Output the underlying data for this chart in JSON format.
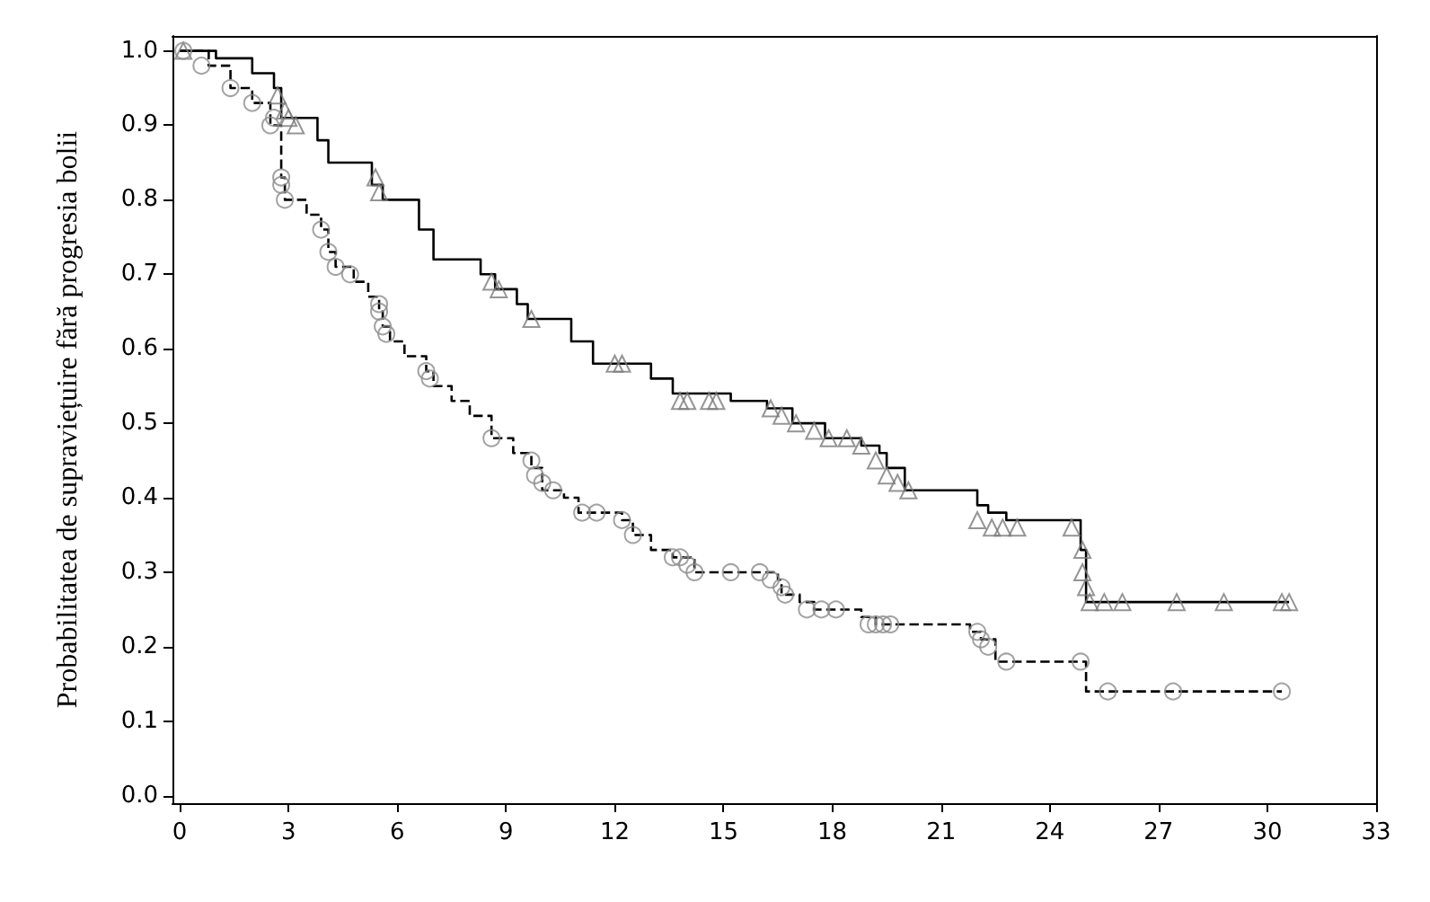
{
  "chart_data": {
    "type": "step",
    "ylabel": "Probabilitatea de supraviețuire fără progresia bolii",
    "xlim": [
      -0.2,
      33
    ],
    "ylim": [
      -0.01,
      1.02
    ],
    "xticks": [
      0,
      3,
      6,
      9,
      12,
      15,
      18,
      21,
      24,
      27,
      30,
      33
    ],
    "yticks": [
      {
        "value": 0,
        "label": "0.0"
      },
      0.1,
      0.2,
      0.3,
      0.4,
      0.5,
      0.6,
      0.7,
      0.8,
      0.9,
      {
        "value": 1,
        "label": "1.0"
      }
    ],
    "grid": false,
    "series": [
      {
        "color": "#000000",
        "line_style": "solid",
        "marker": "none",
        "x": [
          0,
          1.0,
          2.0,
          2.6,
          2.8,
          3.8,
          4.1,
          5.3,
          5.6,
          6.6,
          7.0,
          8.3,
          8.7,
          9.3,
          9.6,
          10.8,
          11.4,
          13.0,
          13.6,
          15.2,
          16.2,
          16.9,
          17.8,
          18.8,
          19.3,
          19.5,
          20.0,
          22.0,
          22.3,
          22.8,
          24.85,
          25.0,
          30.6
        ],
        "values": [
          1.0,
          0.99,
          0.97,
          0.95,
          0.91,
          0.88,
          0.85,
          0.82,
          0.8,
          0.76,
          0.72,
          0.7,
          0.68,
          0.66,
          0.64,
          0.61,
          0.58,
          0.56,
          0.54,
          0.53,
          0.52,
          0.5,
          0.48,
          0.47,
          0.46,
          0.44,
          0.41,
          0.39,
          0.38,
          0.37,
          0.33,
          0.26,
          0.26
        ]
      },
      {
        "color": "#000000",
        "line_style": "dashed",
        "marker": "none",
        "x": [
          0,
          0.8,
          1.4,
          2.0,
          2.5,
          2.8,
          2.9,
          3.5,
          3.9,
          4.1,
          4.3,
          4.8,
          5.2,
          5.5,
          5.6,
          5.8,
          6.2,
          6.8,
          7.0,
          7.5,
          8.0,
          8.6,
          9.2,
          9.7,
          10.0,
          10.6,
          11.0,
          12.2,
          12.5,
          13.0,
          13.6,
          14.2,
          16.5,
          16.6,
          17.1,
          17.5,
          18.8,
          19.2,
          21.8,
          22.1,
          22.5,
          25.0,
          30.4
        ],
        "values": [
          1.0,
          0.98,
          0.95,
          0.93,
          0.9,
          0.83,
          0.8,
          0.78,
          0.76,
          0.73,
          0.71,
          0.69,
          0.67,
          0.65,
          0.63,
          0.61,
          0.59,
          0.57,
          0.55,
          0.53,
          0.51,
          0.48,
          0.46,
          0.44,
          0.41,
          0.4,
          0.38,
          0.37,
          0.35,
          0.33,
          0.32,
          0.3,
          0.29,
          0.27,
          0.26,
          0.25,
          0.24,
          0.23,
          0.22,
          0.21,
          0.18,
          0.14,
          0.14
        ]
      },
      {
        "type": "scatter",
        "color": "#7a7a7a",
        "marker": "triangle",
        "x": [
          0.1,
          2.7,
          2.9,
          3.0,
          3.2,
          5.4,
          5.5,
          8.6,
          8.8,
          9.7,
          12.0,
          12.2,
          13.8,
          14.0,
          14.6,
          14.8,
          16.3,
          16.6,
          17.0,
          17.5,
          17.9,
          18.4,
          18.8,
          19.2,
          19.5,
          19.8,
          20.1,
          22.0,
          22.4,
          22.7,
          23.1,
          24.6,
          24.9,
          24.9,
          25.0,
          25.1,
          25.5,
          26.0,
          27.5,
          28.8,
          30.4,
          30.6
        ],
        "values": [
          1.0,
          0.94,
          0.92,
          0.91,
          0.9,
          0.83,
          0.81,
          0.69,
          0.68,
          0.64,
          0.58,
          0.58,
          0.53,
          0.53,
          0.53,
          0.53,
          0.52,
          0.51,
          0.5,
          0.49,
          0.48,
          0.48,
          0.47,
          0.45,
          0.43,
          0.42,
          0.41,
          0.37,
          0.36,
          0.36,
          0.36,
          0.36,
          0.33,
          0.3,
          0.28,
          0.26,
          0.26,
          0.26,
          0.26,
          0.26,
          0.26,
          0.26
        ]
      },
      {
        "type": "scatter",
        "color": "#8c8c8c",
        "marker": "circle",
        "x": [
          0.1,
          0.6,
          1.4,
          2.0,
          2.5,
          2.6,
          2.8,
          2.8,
          2.9,
          3.9,
          4.1,
          4.3,
          4.7,
          5.5,
          5.5,
          5.6,
          5.7,
          6.8,
          6.9,
          8.6,
          9.7,
          9.8,
          10.0,
          10.3,
          11.1,
          11.5,
          12.2,
          12.5,
          13.6,
          13.8,
          14.0,
          14.2,
          15.2,
          16.0,
          16.3,
          16.6,
          16.7,
          17.3,
          17.7,
          18.1,
          19.0,
          19.2,
          19.4,
          19.6,
          22.0,
          22.1,
          22.3,
          22.8,
          24.85,
          25.6,
          27.4,
          30.4
        ],
        "values": [
          1.0,
          0.98,
          0.95,
          0.93,
          0.9,
          0.91,
          0.83,
          0.82,
          0.8,
          0.76,
          0.73,
          0.71,
          0.7,
          0.66,
          0.65,
          0.63,
          0.62,
          0.57,
          0.56,
          0.48,
          0.45,
          0.43,
          0.42,
          0.41,
          0.38,
          0.38,
          0.37,
          0.35,
          0.32,
          0.32,
          0.31,
          0.3,
          0.3,
          0.3,
          0.29,
          0.28,
          0.27,
          0.25,
          0.25,
          0.25,
          0.23,
          0.23,
          0.23,
          0.23,
          0.22,
          0.21,
          0.2,
          0.18,
          0.18,
          0.14,
          0.14,
          0.14
        ]
      }
    ]
  }
}
